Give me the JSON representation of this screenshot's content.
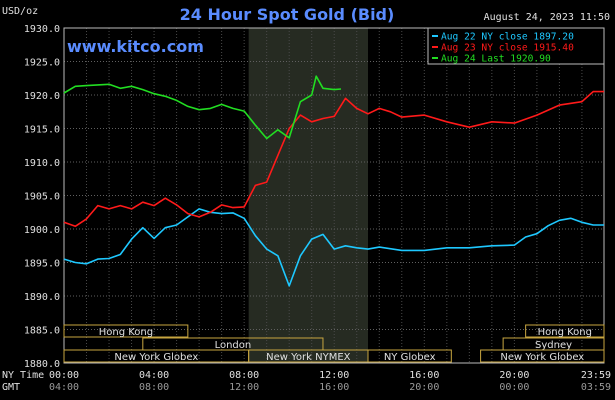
{
  "chart_data": {
    "type": "line",
    "title": "24 Hour Spot Gold (Bid)",
    "website": "www.kitco.com",
    "timestamp": "August 24, 2023 11:50",
    "y_unit": "USD/oz",
    "ylim": [
      1880,
      1930
    ],
    "y_ticks": [
      "1930.0",
      "1925.0",
      "1920.0",
      "1915.0",
      "1910.0",
      "1905.0",
      "1900.0",
      "1895.0",
      "1890.0",
      "1885.0",
      "1880.0"
    ],
    "grid": true,
    "legend_position": "top-right",
    "x_row_labels": {
      "ny": "NY Time",
      "gmt": "GMT"
    },
    "x_ticks_ny": [
      "00:00",
      "04:00",
      "08:00",
      "12:00",
      "16:00",
      "20:00",
      "23:59"
    ],
    "x_ticks_gmt": [
      "04:00",
      "08:00",
      "12:00",
      "16:00",
      "20:00",
      "00:00",
      "03:59"
    ],
    "x_tick_hours": [
      0,
      4,
      8,
      12,
      16,
      20,
      23.98
    ],
    "market_sessions": [
      {
        "label": "Hong Kong",
        "row": 0,
        "start": 0,
        "end": 5.5
      },
      {
        "label": "Hong Kong",
        "row": 0,
        "start": 20.5,
        "end": 23.98
      },
      {
        "label": "London",
        "row": 1,
        "start": 3.5,
        "end": 11.5
      },
      {
        "label": "Sydney",
        "row": 1,
        "start": 19.5,
        "end": 23.98
      },
      {
        "label": "New York Globex",
        "row": 2,
        "start": 0,
        "end": 8.2
      },
      {
        "label": "New York NYMEX",
        "row": 2,
        "start": 8.2,
        "end": 13.5
      },
      {
        "label": "NY Globex",
        "row": 2,
        "start": 13.5,
        "end": 17.2
      },
      {
        "label": "New York Globex",
        "row": 2,
        "start": 18.5,
        "end": 23.98
      }
    ],
    "shaded_period": [
      8.2,
      13.5
    ],
    "series": [
      {
        "name": "Aug 22 NY close 1897.20",
        "color": "#1ec8ff",
        "x": [
          0,
          0.5,
          1,
          1.5,
          2,
          2.5,
          3,
          3.5,
          4,
          4.5,
          5,
          5.5,
          6,
          6.5,
          7,
          7.5,
          8,
          8.5,
          9,
          9.5,
          10,
          10.5,
          11,
          11.5,
          12,
          12.5,
          13,
          13.5,
          14,
          15,
          16,
          17,
          18,
          19,
          20,
          20.5,
          21,
          21.5,
          22,
          22.5,
          23,
          23.5,
          23.98
        ],
        "y": [
          1895.5,
          1895.0,
          1894.8,
          1895.5,
          1895.6,
          1896.2,
          1898.5,
          1900.2,
          1898.6,
          1900.2,
          1900.6,
          1901.8,
          1903.0,
          1902.5,
          1902.3,
          1902.4,
          1901.6,
          1899.0,
          1897.0,
          1896.0,
          1891.5,
          1896.0,
          1898.5,
          1899.2,
          1897.0,
          1897.5,
          1897.2,
          1897.0,
          1897.3,
          1896.8,
          1896.8,
          1897.2,
          1897.2,
          1897.5,
          1897.6,
          1898.8,
          1899.3,
          1900.5,
          1901.3,
          1901.6,
          1901.0,
          1900.6,
          1900.6
        ]
      },
      {
        "name": "Aug 23 NY close 1915.40",
        "color": "#ff1a1a",
        "x": [
          0,
          0.5,
          1,
          1.5,
          2,
          2.5,
          3,
          3.5,
          4,
          4.5,
          5,
          5.5,
          6,
          6.5,
          7,
          7.5,
          8,
          8.5,
          9,
          9.5,
          10,
          10.5,
          11,
          11.5,
          12,
          12.5,
          13,
          13.5,
          14,
          14.5,
          15,
          16,
          17,
          18,
          19,
          20,
          21,
          22,
          23,
          23.5,
          23.98
        ],
        "y": [
          1901.0,
          1900.4,
          1901.5,
          1903.5,
          1903.0,
          1903.5,
          1903.0,
          1904.0,
          1903.5,
          1904.6,
          1903.6,
          1902.3,
          1901.8,
          1902.5,
          1903.6,
          1903.2,
          1903.3,
          1906.5,
          1907.0,
          1911.0,
          1915.0,
          1917.0,
          1916.0,
          1916.5,
          1916.8,
          1919.5,
          1918.0,
          1917.2,
          1918.0,
          1917.5,
          1916.7,
          1917.0,
          1916.0,
          1915.2,
          1916.0,
          1915.8,
          1917.0,
          1918.5,
          1919.0,
          1920.5,
          1920.5
        ]
      },
      {
        "name": "Aug 24 Last 1920.90",
        "color": "#22dd22",
        "x": [
          0,
          0.5,
          1,
          1.5,
          2,
          2.5,
          3,
          3.5,
          4,
          4.5,
          5,
          5.5,
          6,
          6.5,
          7,
          7.5,
          8,
          8.5,
          9,
          9.5,
          10,
          10.5,
          11,
          11.2,
          11.5,
          12,
          12.3
        ],
        "y": [
          1920.3,
          1921.3,
          1921.4,
          1921.5,
          1921.6,
          1921.0,
          1921.3,
          1920.8,
          1920.2,
          1919.8,
          1919.2,
          1918.3,
          1917.8,
          1918.0,
          1918.6,
          1918.0,
          1917.6,
          1915.5,
          1913.5,
          1914.8,
          1913.6,
          1919.0,
          1920.0,
          1922.8,
          1921.0,
          1920.8,
          1920.9
        ]
      }
    ]
  }
}
